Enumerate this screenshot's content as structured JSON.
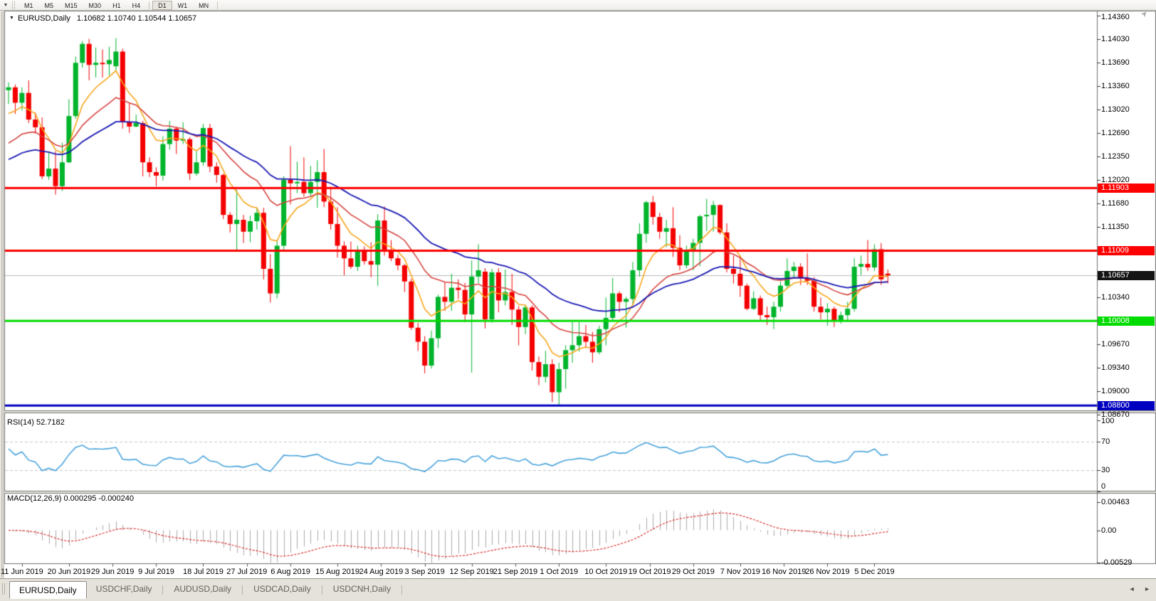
{
  "icons": {
    "dropdown": "▼",
    "collapse": "▼",
    "tab_scroll_left": "◄",
    "tab_scroll_right": "►",
    "end_marker": "➤"
  },
  "toolbar": {
    "timeframes": [
      "M1",
      "M5",
      "M15",
      "M30",
      "H1",
      "H4",
      "D1",
      "W1",
      "MN"
    ],
    "active": "D1",
    "separator_after": [
      "H4",
      "MN"
    ]
  },
  "tabs": {
    "items": [
      {
        "label": "EURUSD,Daily",
        "active": true
      },
      {
        "label": "USDCHF,Daily",
        "active": false
      },
      {
        "label": "AUDUSD,Daily",
        "active": false
      },
      {
        "label": "USDCAD,Daily",
        "active": false
      },
      {
        "label": "USDCNH,Daily",
        "active": false
      }
    ]
  },
  "colors": {
    "up_candle": "#00B42B",
    "down_candle": "#F40000",
    "ma_fast": "#F7A71B",
    "ma_mid": "#D64541",
    "ma_slow": "#1A1AB4",
    "level_red": "#FF0000",
    "level_green": "#00DC00",
    "level_blue": "#0000C0",
    "current_line": "#B8B8B8",
    "rsi_line": "#47A3DC",
    "rsi_levels": "#C6C6C6",
    "macd_bar": "#ABABAB",
    "macd_signal": "#DE2B2B",
    "panel_bg": "#FFFFFF",
    "chrome_bg": "#ECE9E2",
    "border": "#707070"
  },
  "chart_data": {
    "type": "candlestick",
    "symbol": "EURUSD",
    "timeframe": "Daily",
    "title_symbol": "EURUSD,Daily",
    "title_ohlc": "1.10682 1.10740 1.10544 1.10657",
    "ohlc_display": {
      "open": "1.10682",
      "high": "1.10740",
      "low": "1.10544",
      "close": "1.10657"
    },
    "candles": [
      [
        1.133,
        1.1341,
        1.131,
        1.1334
      ],
      [
        1.1334,
        1.1338,
        1.1296,
        1.1312
      ],
      [
        1.1312,
        1.1334,
        1.1301,
        1.1326
      ],
      [
        1.1326,
        1.1344,
        1.1283,
        1.1288
      ],
      [
        1.1288,
        1.1298,
        1.1268,
        1.1277
      ],
      [
        1.1277,
        1.1291,
        1.1203,
        1.1207
      ],
      [
        1.1207,
        1.1241,
        1.1202,
        1.1218
      ],
      [
        1.1218,
        1.1243,
        1.1181,
        1.1193
      ],
      [
        1.1193,
        1.1255,
        1.1186,
        1.1227
      ],
      [
        1.1227,
        1.1317,
        1.1226,
        1.1293
      ],
      [
        1.1293,
        1.1378,
        1.1289,
        1.1369
      ],
      [
        1.1369,
        1.14,
        1.1362,
        1.1396
      ],
      [
        1.1396,
        1.1403,
        1.1344,
        1.1366
      ],
      [
        1.1366,
        1.1391,
        1.1348,
        1.1369
      ],
      [
        1.1369,
        1.1388,
        1.1348,
        1.1367
      ],
      [
        1.1367,
        1.1392,
        1.1351,
        1.1373
      ],
      [
        1.1364,
        1.1404,
        1.1358,
        1.1385
      ],
      [
        1.1385,
        1.1389,
        1.1275,
        1.1285
      ],
      [
        1.1285,
        1.1312,
        1.1269,
        1.1278
      ],
      [
        1.1278,
        1.1295,
        1.1277,
        1.1283
      ],
      [
        1.1283,
        1.1286,
        1.1207,
        1.1227
      ],
      [
        1.1227,
        1.1234,
        1.1206,
        1.1213
      ],
      [
        1.1213,
        1.122,
        1.1193,
        1.1208
      ],
      [
        1.1208,
        1.1264,
        1.1201,
        1.1253
      ],
      [
        1.1253,
        1.1286,
        1.1245,
        1.1275
      ],
      [
        1.1275,
        1.1278,
        1.1239,
        1.1258
      ],
      [
        1.1258,
        1.1284,
        1.1253,
        1.126
      ],
      [
        1.126,
        1.1263,
        1.1202,
        1.1211
      ],
      [
        1.1211,
        1.1243,
        1.1208,
        1.1227
      ],
      [
        1.1227,
        1.1282,
        1.1222,
        1.1276
      ],
      [
        1.1276,
        1.1282,
        1.1213,
        1.1221
      ],
      [
        1.1221,
        1.1227,
        1.1198,
        1.1209
      ],
      [
        1.1209,
        1.1211,
        1.1146,
        1.1152
      ],
      [
        1.1152,
        1.1156,
        1.1127,
        1.1139
      ],
      [
        1.1139,
        1.1188,
        1.1101,
        1.1145
      ],
      [
        1.1145,
        1.1152,
        1.1112,
        1.1128
      ],
      [
        1.1128,
        1.1151,
        1.1113,
        1.1143
      ],
      [
        1.1143,
        1.1162,
        1.1131,
        1.1155
      ],
      [
        1.1155,
        1.1162,
        1.106,
        1.1075
      ],
      [
        1.1075,
        1.1096,
        1.1027,
        1.104
      ],
      [
        1.104,
        1.1116,
        1.1033,
        1.1108
      ],
      [
        1.1108,
        1.1207,
        1.1101,
        1.1202
      ],
      [
        1.1202,
        1.125,
        1.1167,
        1.1197
      ],
      [
        1.1197,
        1.1228,
        1.1183,
        1.1199
      ],
      [
        1.1199,
        1.1234,
        1.1178,
        1.1183
      ],
      [
        1.1183,
        1.1222,
        1.1178,
        1.1199
      ],
      [
        1.1199,
        1.123,
        1.1162,
        1.1213
      ],
      [
        1.1213,
        1.1246,
        1.1163,
        1.1171
      ],
      [
        1.1171,
        1.1192,
        1.1131,
        1.1139
      ],
      [
        1.1139,
        1.1163,
        1.1091,
        1.1108
      ],
      [
        1.1108,
        1.1114,
        1.1066,
        1.109
      ],
      [
        1.109,
        1.1114,
        1.1075,
        1.1078
      ],
      [
        1.1078,
        1.1108,
        1.1072,
        1.11
      ],
      [
        1.11,
        1.1107,
        1.1081,
        1.1086
      ],
      [
        1.1086,
        1.1113,
        1.1063,
        1.1081
      ],
      [
        1.1081,
        1.1153,
        1.1051,
        1.1144
      ],
      [
        1.1144,
        1.1164,
        1.1094,
        1.1101
      ],
      [
        1.1101,
        1.1116,
        1.1086,
        1.109
      ],
      [
        1.109,
        1.1095,
        1.1073,
        1.108
      ],
      [
        1.108,
        1.1082,
        1.1042,
        1.1057
      ],
      [
        1.1057,
        1.1061,
        1.0988,
        1.0991
      ],
      [
        1.0991,
        1.0998,
        1.0958,
        1.0971
      ],
      [
        1.0971,
        1.0979,
        1.0926,
        1.0937
      ],
      [
        1.0937,
        1.0987,
        1.0933,
        1.0976
      ],
      [
        1.0976,
        1.1038,
        1.0962,
        1.1035
      ],
      [
        1.1035,
        1.1056,
        1.1015,
        1.1028
      ],
      [
        1.1028,
        1.1068,
        1.1015,
        1.1048
      ],
      [
        1.1048,
        1.106,
        1.1032,
        1.1045
      ],
      [
        1.1045,
        1.1055,
        1.0999,
        1.101
      ],
      [
        1.101,
        1.1087,
        1.0927,
        1.1064
      ],
      [
        1.1064,
        1.111,
        1.1055,
        1.1073
      ],
      [
        1.1071,
        1.1076,
        1.099,
        1.1003
      ],
      [
        1.1003,
        1.1075,
        1.0998,
        1.107
      ],
      [
        1.107,
        1.1076,
        1.1013,
        1.103
      ],
      [
        1.103,
        1.1074,
        1.1023,
        1.1042
      ],
      [
        1.1042,
        1.1068,
        1.0995,
        1.1017
      ],
      [
        1.1017,
        1.1022,
        1.0966,
        1.0992
      ],
      [
        1.0992,
        1.1024,
        1.0982,
        1.102
      ],
      [
        1.102,
        1.1023,
        1.093,
        1.0942
      ],
      [
        1.0942,
        1.095,
        1.0909,
        1.0921
      ],
      [
        1.0921,
        1.0958,
        1.0913,
        1.0939
      ],
      [
        1.0939,
        1.0946,
        1.0885,
        1.0899
      ],
      [
        1.0899,
        1.0941,
        1.0879,
        1.0932
      ],
      [
        1.0932,
        1.0966,
        1.0904,
        1.0959
      ],
      [
        1.0959,
        1.0999,
        1.0941,
        1.0966
      ],
      [
        1.0966,
        1.0999,
        1.0957,
        1.0979
      ],
      [
        1.0979,
        1.0995,
        1.0962,
        1.0971
      ],
      [
        1.0971,
        1.0985,
        1.0941,
        1.0956
      ],
      [
        1.0956,
        1.0994,
        1.0953,
        1.0989
      ],
      [
        1.0989,
        1.1034,
        1.0966,
        1.1005
      ],
      [
        1.1005,
        1.1062,
        1.1002,
        1.104
      ],
      [
        1.104,
        1.1043,
        1.1013,
        1.1028
      ],
      [
        1.1028,
        1.1035,
        1.0991,
        1.1032
      ],
      [
        1.1032,
        1.1085,
        1.1024,
        1.1073
      ],
      [
        1.1073,
        1.114,
        1.1064,
        1.1125
      ],
      [
        1.1125,
        1.1172,
        1.1112,
        1.117
      ],
      [
        1.117,
        1.1179,
        1.1138,
        1.1149
      ],
      [
        1.1149,
        1.1155,
        1.1118,
        1.1128
      ],
      [
        1.1128,
        1.1145,
        1.1106,
        1.1133
      ],
      [
        1.1133,
        1.1163,
        1.1092,
        1.1105
      ],
      [
        1.1105,
        1.1123,
        1.1073,
        1.108
      ],
      [
        1.108,
        1.1108,
        1.1076,
        1.11
      ],
      [
        1.11,
        1.1118,
        1.1073,
        1.1112
      ],
      [
        1.1112,
        1.1152,
        1.1079,
        1.115
      ],
      [
        1.115,
        1.1175,
        1.1129,
        1.1152
      ],
      [
        1.1152,
        1.1172,
        1.1128,
        1.1166
      ],
      [
        1.1166,
        1.1167,
        1.1124,
        1.1127
      ],
      [
        1.1127,
        1.114,
        1.107,
        1.1075
      ],
      [
        1.1075,
        1.1094,
        1.1054,
        1.1068
      ],
      [
        1.1068,
        1.1092,
        1.1035,
        1.1051
      ],
      [
        1.1051,
        1.1054,
        1.1016,
        1.1018
      ],
      [
        1.1018,
        1.1043,
        1.1016,
        1.1033
      ],
      [
        1.1033,
        1.1037,
        1.1002,
        1.1009
      ],
      [
        1.1009,
        1.1021,
        1.0995,
        1.1006
      ],
      [
        1.1006,
        1.1028,
        1.0989,
        1.1021
      ],
      [
        1.1021,
        1.1057,
        1.1014,
        1.1051
      ],
      [
        1.1051,
        1.109,
        1.1047,
        1.1072
      ],
      [
        1.1072,
        1.1085,
        1.1063,
        1.1078
      ],
      [
        1.1078,
        1.1083,
        1.1052,
        1.1062
      ],
      [
        1.1062,
        1.1097,
        1.1052,
        1.1058
      ],
      [
        1.1058,
        1.1063,
        1.1014,
        1.1021
      ],
      [
        1.1021,
        1.1034,
        1.1003,
        1.1013
      ],
      [
        1.1013,
        1.1026,
        1.0994,
        1.1018
      ],
      [
        1.1018,
        1.1021,
        1.0992,
        1.1001
      ],
      [
        1.1001,
        1.1014,
        1.0997,
        1.1009
      ],
      [
        1.1009,
        1.1028,
        1.0999,
        1.1018
      ],
      [
        1.1018,
        1.109,
        1.1014,
        1.1078
      ],
      [
        1.1078,
        1.1094,
        1.1066,
        1.1082
      ],
      [
        1.1082,
        1.1116,
        1.1072,
        1.1077
      ],
      [
        1.1077,
        1.111,
        1.1072,
        1.1103
      ],
      [
        1.1103,
        1.1112,
        1.1052,
        1.106
      ],
      [
        1.10682,
        1.1074,
        1.10544,
        1.10657
      ]
    ],
    "moving_averages": [
      {
        "name": "fast-ma",
        "alpha": 0.24,
        "seed": 1.1285,
        "color": "#F7A71B",
        "width": 1.6
      },
      {
        "name": "mid-ma",
        "alpha": 0.105,
        "seed": 1.1245,
        "color": "#D64541",
        "width": 1.6
      },
      {
        "name": "slow-ma",
        "alpha": 0.055,
        "seed": 1.1225,
        "color": "#1A1AB4",
        "width": 1.8
      }
    ],
    "levels": [
      {
        "price": 1.11903,
        "color": "#FF0000",
        "width": 3
      },
      {
        "price": 1.11009,
        "color": "#FF0000",
        "width": 3
      },
      {
        "price": 1.10008,
        "color": "#00DC00",
        "width": 3
      },
      {
        "price": 1.088,
        "color": "#0000C0",
        "width": 3
      }
    ],
    "current_price": 1.10657,
    "y_axis_ticks": [
      "1.14360",
      "1.14030",
      "1.13690",
      "1.13360",
      "1.13020",
      "1.12690",
      "1.12350",
      "1.12020",
      "1.11680",
      "1.11350",
      "1.10340",
      "1.09670",
      "1.09340",
      "1.09000",
      "1.08670"
    ],
    "price_badges": [
      {
        "text": "1.11903",
        "price": 1.11903,
        "bg": "#FF0000"
      },
      {
        "text": "1.11009",
        "price": 1.11009,
        "bg": "#FF0000"
      },
      {
        "text": "1.10657",
        "price": 1.10657,
        "bg": "#141414"
      },
      {
        "text": "1.10008",
        "price": 1.10008,
        "bg": "#00DC00"
      },
      {
        "text": "1.08800",
        "price": 1.088,
        "bg": "#0000C0"
      }
    ],
    "date_labels": [
      {
        "label": "11 Jun 2019",
        "i": 2
      },
      {
        "label": "20 Jun 2019",
        "i": 9
      },
      {
        "label": "29 Jun 2019",
        "i": 15.5
      },
      {
        "label": "9 Jul 2019",
        "i": 22
      },
      {
        "label": "18 Jul 2019",
        "i": 29
      },
      {
        "label": "27 Jul 2019",
        "i": 35.5
      },
      {
        "label": "6 Aug 2019",
        "i": 42
      },
      {
        "label": "15 Aug 2019",
        "i": 49
      },
      {
        "label": "24 Aug 2019",
        "i": 55.5
      },
      {
        "label": "3 Sep 2019",
        "i": 62
      },
      {
        "label": "12 Sep 2019",
        "i": 69
      },
      {
        "label": "21 Sep 2019",
        "i": 75.5
      },
      {
        "label": "1 Oct 2019",
        "i": 82
      },
      {
        "label": "10 Oct 2019",
        "i": 89
      },
      {
        "label": "19 Oct 2019",
        "i": 95.5
      },
      {
        "label": "29 Oct 2019",
        "i": 102
      },
      {
        "label": "7 Nov 2019",
        "i": 109
      },
      {
        "label": "16 Nov 2019",
        "i": 115.5
      },
      {
        "label": "26 Nov 2019",
        "i": 122
      },
      {
        "label": "5 Dec 2019",
        "i": 129
      }
    ],
    "indicators": {
      "rsi": {
        "label": "RSI(14)",
        "value_text": "52.7182",
        "period": 14,
        "levels": [
          70,
          30
        ],
        "scale": [
          {
            "text": "100",
            "v": 100
          },
          {
            "text": "70",
            "v": 70
          },
          {
            "text": "30",
            "v": 30
          },
          {
            "text": "0",
            "v": 0
          }
        ]
      },
      "macd": {
        "label": "MACD(12,26,9)",
        "values_text": "0.000295 -0.000240",
        "fast": 12,
        "slow": 26,
        "signal": 9,
        "scale": [
          {
            "text": "0.00463",
            "v": 0.00463
          },
          {
            "text": "0.00",
            "v": 0
          },
          {
            "text": "-0.00529",
            "v": -0.00529
          }
        ]
      }
    }
  }
}
